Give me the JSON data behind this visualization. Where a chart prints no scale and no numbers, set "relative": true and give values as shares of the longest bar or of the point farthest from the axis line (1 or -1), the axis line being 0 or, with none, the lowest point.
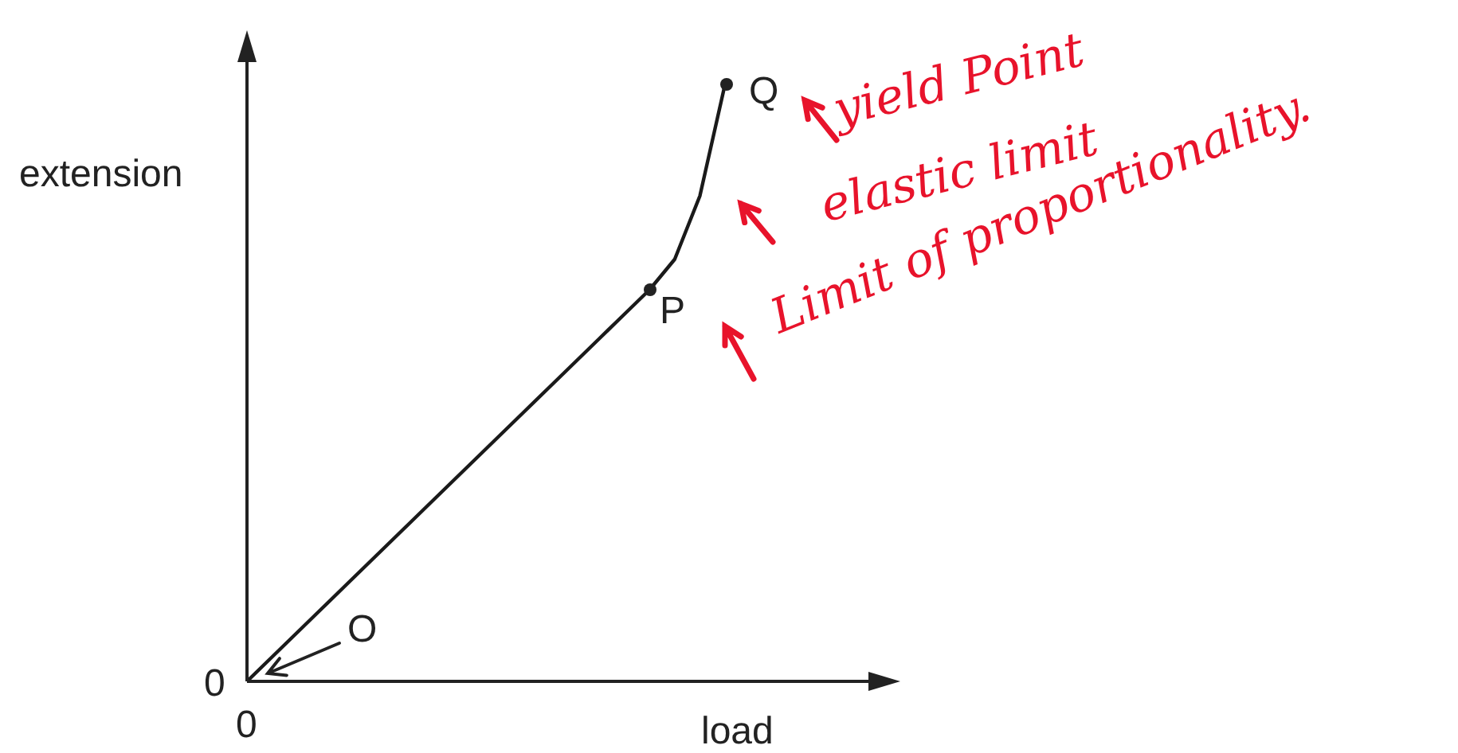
{
  "chart_data": {
    "type": "line",
    "relative": true,
    "xlabel": "load",
    "ylabel": "extension",
    "categories": [
      null,
      null,
      null,
      null,
      null,
      null,
      null,
      null,
      null,
      null,
      null,
      null,
      null,
      null,
      null,
      null,
      null,
      null,
      null,
      null
    ],
    "series": [
      {
        "type": "line",
        "color": "#1a1a1a",
        "values": [
          0,
          0.041,
          0.082,
          0.123,
          0.164,
          0.205,
          0.246,
          0.287,
          0.328,
          0.369,
          0.41,
          0.451,
          0.492,
          0.533,
          0.574,
          0.615,
          0.656,
          0.707,
          0.813,
          1
        ]
      }
    ],
    "annotations": [
      "O",
      "P",
      "Q",
      "0",
      "0",
      "yield Point",
      "elastic limit",
      "Limit of proportionality."
    ],
    "legend": false,
    "grid": false,
    "tick_labels": false
  }
}
